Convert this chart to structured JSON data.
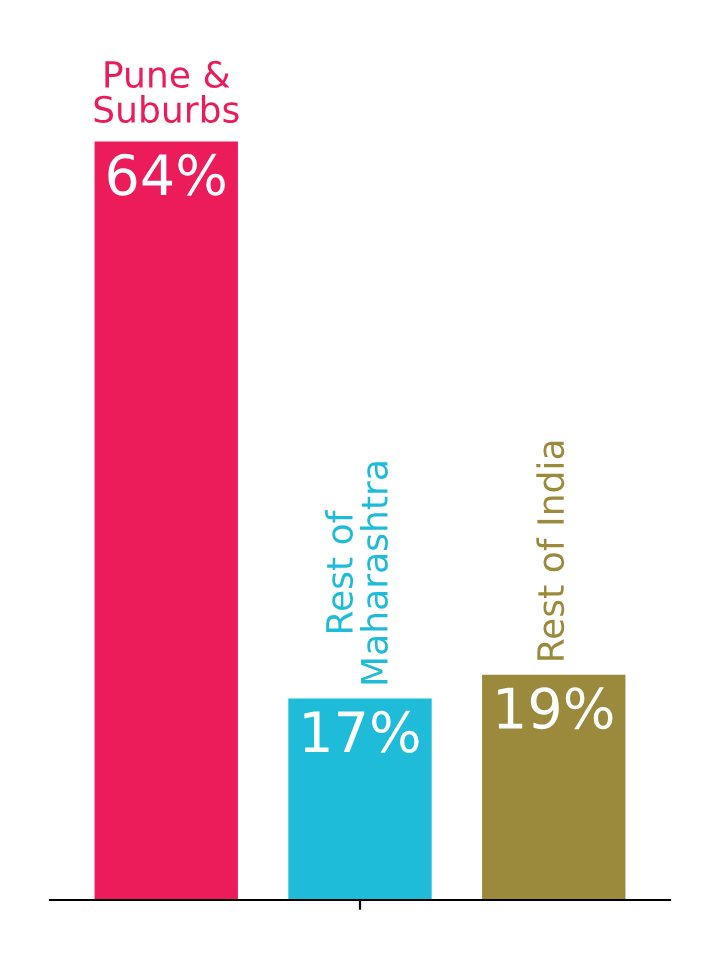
{
  "chart_data": {
    "type": "bar",
    "categories": [
      "Pune &\nSuburbs",
      "Rest of\nMaharashtra",
      "Rest of India"
    ],
    "values": [
      64,
      17,
      19
    ],
    "colors": [
      "#ec1c5a",
      "#1fbcd9",
      "#9b8a3c"
    ],
    "value_labels": [
      "64%",
      "17%",
      "19%"
    ],
    "grid": false,
    "legend": false
  }
}
